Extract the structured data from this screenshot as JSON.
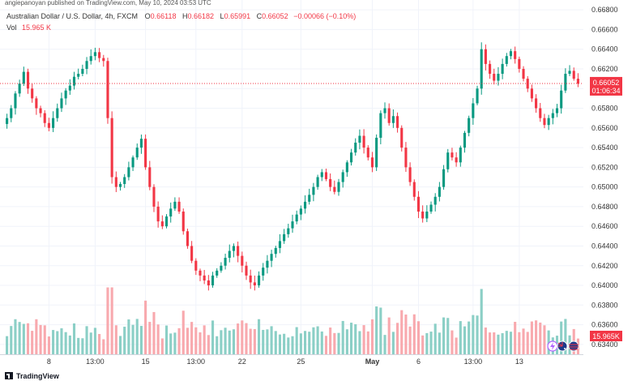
{
  "header": {
    "published": "angiepanoyan published on TradingView.com, May 10, 2024 03:53 UTC",
    "symbol": "Australian Dollar / U.S. Dollar, 4h, FXCM",
    "o_label": "O",
    "o_value": "0.66118",
    "h_label": "H",
    "h_value": "0.66182",
    "l_label": "L",
    "l_value": "0.65991",
    "c_label": "C",
    "c_value": "0.66052",
    "change": "−0.00066 (−0.10%)",
    "vol_label": "Vol",
    "vol_value": "15.965 K"
  },
  "price_badge": {
    "value": "0.66052",
    "countdown": "01:06:34",
    "color": "#f23645"
  },
  "vol_badge": {
    "value": "15.965K",
    "color": "#f23645"
  },
  "footer": {
    "brand": "TradingView",
    "brand_icon": "tradingview-logo-icon"
  },
  "icons": {
    "events": [
      "lightning-icon",
      "flag-australia-icon"
    ]
  },
  "colors": {
    "up": "#089981",
    "down": "#f23645",
    "vol_up": "#8bcfc6",
    "vol_down": "#f8a9ae",
    "grid": "#f0f3fa"
  },
  "chart_data": {
    "type": "candlestick",
    "y_axis_ticks": [
      "0.66800",
      "0.66600",
      "0.66400",
      "0.66200",
      "0.66000",
      "0.65800",
      "0.65600",
      "0.65400",
      "0.65200",
      "0.65000",
      "0.64800",
      "0.64600",
      "0.64400",
      "0.64200",
      "0.64000",
      "0.63800",
      "0.63600",
      "0.63400"
    ],
    "x_axis_ticks": [
      "8",
      "13:00",
      "15",
      "13:00",
      "22",
      "25",
      "May",
      "6",
      "13:00",
      "13"
    ],
    "ylim": [
      0.633,
      0.669
    ],
    "close_series": [
      0.657,
      0.658,
      0.6595,
      0.6605,
      0.6617,
      0.66,
      0.659,
      0.658,
      0.6575,
      0.6565,
      0.656,
      0.657,
      0.658,
      0.659,
      0.6598,
      0.6603,
      0.6612,
      0.6615,
      0.662,
      0.6628,
      0.6633,
      0.6637,
      0.6631,
      0.6628,
      0.657,
      0.651,
      0.65,
      0.6503,
      0.651,
      0.652,
      0.653,
      0.654,
      0.6549,
      0.652,
      0.65,
      0.648,
      0.6465,
      0.646,
      0.647,
      0.6478,
      0.6485,
      0.6475,
      0.6455,
      0.644,
      0.6425,
      0.6415,
      0.641,
      0.6405,
      0.64,
      0.641,
      0.6415,
      0.642,
      0.6428,
      0.6435,
      0.644,
      0.643,
      0.642,
      0.641,
      0.6403,
      0.64,
      0.641,
      0.6418,
      0.6425,
      0.6432,
      0.6438,
      0.6445,
      0.6452,
      0.6458,
      0.6465,
      0.6472,
      0.6478,
      0.6485,
      0.6492,
      0.65,
      0.651,
      0.6515,
      0.6508,
      0.65,
      0.6495,
      0.6505,
      0.6515,
      0.6525,
      0.6535,
      0.6545,
      0.6552,
      0.654,
      0.653,
      0.652,
      0.655,
      0.6575,
      0.658,
      0.6565,
      0.6572,
      0.656,
      0.654,
      0.652,
      0.6505,
      0.649,
      0.6475,
      0.6468,
      0.6475,
      0.6482,
      0.649,
      0.65,
      0.6518,
      0.6535,
      0.653,
      0.6525,
      0.654,
      0.6555,
      0.657,
      0.6585,
      0.66,
      0.664,
      0.6625,
      0.6615,
      0.6608,
      0.6615,
      0.6625,
      0.6633,
      0.6638,
      0.663,
      0.662,
      0.661,
      0.66,
      0.659,
      0.658,
      0.657,
      0.6563,
      0.657,
      0.6575,
      0.658,
      0.6598,
      0.6615,
      0.6618,
      0.661,
      0.6605
    ]
  }
}
